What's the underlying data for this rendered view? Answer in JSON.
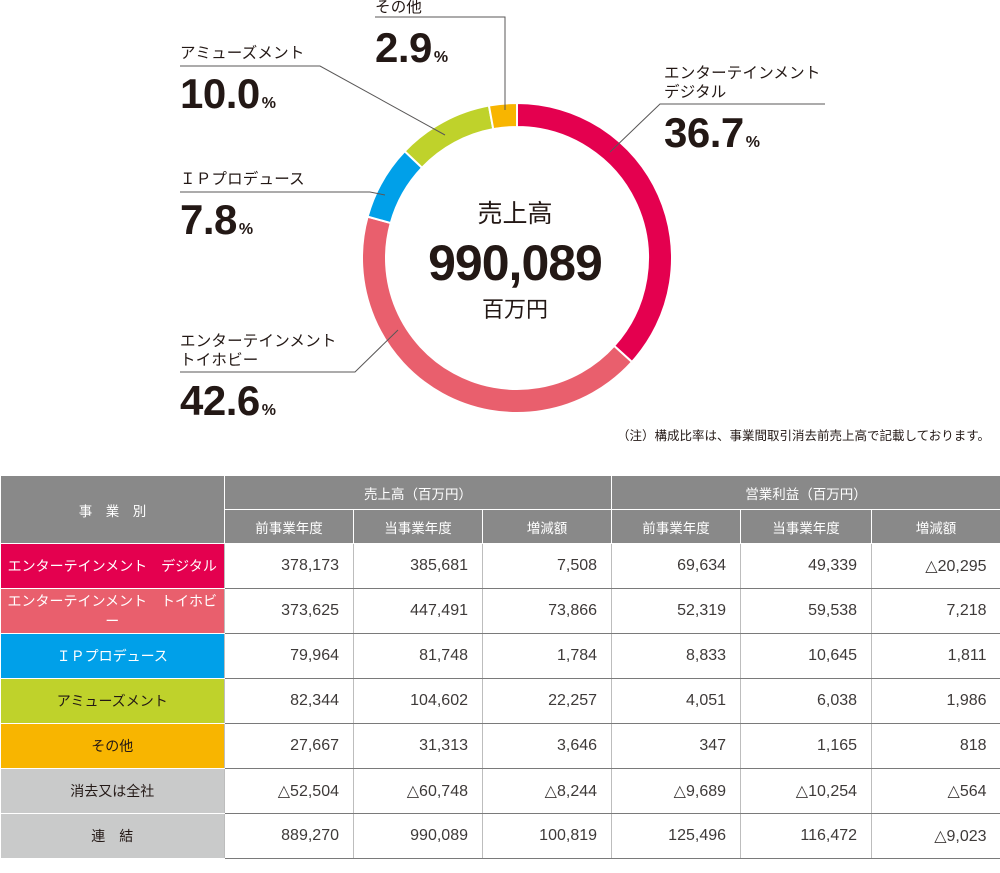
{
  "chart_data": [
    {
      "type": "pie",
      "center_label": "売上高",
      "center_value": "990,089",
      "center_unit": "百万円",
      "slices": [
        {
          "name": "エンターテインメント\nデジタル",
          "value": 36.7,
          "display": "36.7",
          "color": "#e4004f"
        },
        {
          "name": "エンターテインメント\nトイホビー",
          "value": 42.6,
          "display": "42.6",
          "color": "#e95f6d"
        },
        {
          "name": "ＩＰプロデュース",
          "value": 7.8,
          "display": "7.8",
          "color": "#00a0e9"
        },
        {
          "name": "アミューズメント",
          "value": 10.0,
          "display": "10.0",
          "color": "#bfd22b"
        },
        {
          "name": "その他",
          "value": 2.9,
          "display": "2.9",
          "color": "#f8b500"
        }
      ],
      "percent_unit": "%"
    },
    {
      "type": "table",
      "headers": {
        "segment": "事　業　別",
        "sales_group": "売上高（百万円）",
        "profit_group": "営業利益（百万円）",
        "cols": [
          "前事業年度",
          "当事業年度",
          "増減額",
          "前事業年度",
          "当事業年度",
          "増減額"
        ]
      },
      "rows": [
        {
          "segment": "エンターテインメント　デジタル",
          "bg": "#e4004f",
          "fg": "#ffffff",
          "values": [
            "378,173",
            "385,681",
            "7,508",
            "69,634",
            "49,339",
            "△20,295"
          ]
        },
        {
          "segment": "エンターテインメント　トイホビー",
          "bg": "#e95f6d",
          "fg": "#ffffff",
          "values": [
            "373,625",
            "447,491",
            "73,866",
            "52,319",
            "59,538",
            "7,218"
          ]
        },
        {
          "segment": "ＩＰプロデュース",
          "bg": "#00a0e9",
          "fg": "#ffffff",
          "values": [
            "79,964",
            "81,748",
            "1,784",
            "8,833",
            "10,645",
            "1,811"
          ]
        },
        {
          "segment": "アミューズメント",
          "bg": "#bfd22b",
          "fg": "#231815",
          "values": [
            "82,344",
            "104,602",
            "22,257",
            "4,051",
            "6,038",
            "1,986"
          ]
        },
        {
          "segment": "その他",
          "bg": "#f8b500",
          "fg": "#231815",
          "values": [
            "27,667",
            "31,313",
            "3,646",
            "347",
            "1,165",
            "818"
          ]
        },
        {
          "segment": "消去又は全社",
          "bg": "#c9caca",
          "fg": "#231815",
          "values": [
            "△52,504",
            "△60,748",
            "△8,244",
            "△9,689",
            "△10,254",
            "△564"
          ]
        },
        {
          "segment": "連　結",
          "bg": "#c9caca",
          "fg": "#231815",
          "values": [
            "889,270",
            "990,089",
            "100,819",
            "125,496",
            "116,472",
            "△9,023"
          ]
        }
      ]
    }
  ],
  "note": "（注）構成比率は、事業間取引消去前売上高で記載しております。"
}
